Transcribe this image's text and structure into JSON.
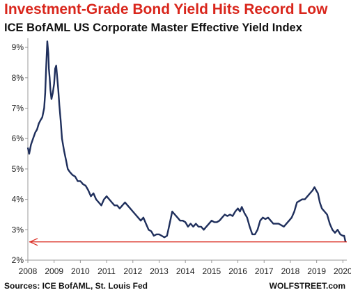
{
  "title": "Investment-Grade  Bond Yield Hits Record Low",
  "subtitle": "ICE BofAML US Corporate Master Effective Yield Index",
  "footer": {
    "source": "Sources: ICE BofAML, St. Louis Fed",
    "brand": "WOLFSTREET.com"
  },
  "colors": {
    "line": "#1f2f5c",
    "record_line": "#d9261c",
    "title": "#d9261c",
    "axis": "#999999"
  },
  "chart_data": {
    "type": "line",
    "title": "ICE BofAML US Corporate Master Effective Yield Index",
    "xlabel": "",
    "ylabel": "",
    "xlim": [
      2008.0,
      2020.15
    ],
    "ylim": [
      2,
      9.3
    ],
    "x_ticks": [
      2008,
      2009,
      2010,
      2011,
      2012,
      2013,
      2014,
      2015,
      2016,
      2017,
      2018,
      2019,
      2020
    ],
    "x_tick_labels": [
      "2008",
      "2009",
      "2010",
      "2011",
      "2012",
      "2013",
      "2014",
      "2015",
      "2016",
      "2017",
      "2018",
      "2019",
      "2020"
    ],
    "y_ticks": [
      2,
      3,
      4,
      5,
      6,
      7,
      8,
      9
    ],
    "y_tick_labels": [
      "2%",
      "3%",
      "4%",
      "5%",
      "6%",
      "7%",
      "8%",
      "9%"
    ],
    "grid": false,
    "record_low_line": 2.6,
    "series": [
      {
        "name": "",
        "x": [
          2008.0,
          2008.05,
          2008.12,
          2008.2,
          2008.28,
          2008.35,
          2008.42,
          2008.48,
          2008.55,
          2008.62,
          2008.66,
          2008.7,
          2008.74,
          2008.78,
          2008.8,
          2008.83,
          2008.86,
          2008.9,
          2008.95,
          2009.0,
          2009.04,
          2009.08,
          2009.12,
          2009.16,
          2009.2,
          2009.25,
          2009.3,
          2009.38,
          2009.45,
          2009.52,
          2009.6,
          2009.7,
          2009.8,
          2009.9,
          2010.0,
          2010.1,
          2010.2,
          2010.3,
          2010.4,
          2010.5,
          2010.6,
          2010.7,
          2010.8,
          2010.9,
          2011.0,
          2011.1,
          2011.2,
          2011.3,
          2011.4,
          2011.5,
          2011.6,
          2011.7,
          2011.8,
          2011.9,
          2012.0,
          2012.1,
          2012.2,
          2012.3,
          2012.4,
          2012.5,
          2012.6,
          2012.7,
          2012.8,
          2012.9,
          2013.0,
          2013.1,
          2013.2,
          2013.3,
          2013.4,
          2013.5,
          2013.6,
          2013.7,
          2013.8,
          2013.9,
          2014.0,
          2014.1,
          2014.2,
          2014.3,
          2014.4,
          2014.5,
          2014.6,
          2014.7,
          2014.8,
          2014.9,
          2015.0,
          2015.1,
          2015.2,
          2015.3,
          2015.4,
          2015.5,
          2015.6,
          2015.7,
          2015.8,
          2015.9,
          2016.0,
          2016.08,
          2016.15,
          2016.25,
          2016.35,
          2016.45,
          2016.55,
          2016.65,
          2016.75,
          2016.85,
          2016.95,
          2017.05,
          2017.15,
          2017.25,
          2017.35,
          2017.45,
          2017.55,
          2017.65,
          2017.75,
          2017.85,
          2017.95,
          2018.05,
          2018.15,
          2018.25,
          2018.35,
          2018.45,
          2018.55,
          2018.65,
          2018.75,
          2018.85,
          2018.92,
          2018.98,
          2019.05,
          2019.12,
          2019.2,
          2019.3,
          2019.4,
          2019.5,
          2019.6,
          2019.7,
          2019.8,
          2019.9,
          2020.0,
          2020.05,
          2020.1
        ],
        "values": [
          5.7,
          5.5,
          5.8,
          6.0,
          6.2,
          6.3,
          6.5,
          6.6,
          6.7,
          7.0,
          7.5,
          8.4,
          9.2,
          8.8,
          8.3,
          8.0,
          7.6,
          7.3,
          7.5,
          7.8,
          8.3,
          8.4,
          8.0,
          7.6,
          7.1,
          6.6,
          6.0,
          5.6,
          5.3,
          5.0,
          4.9,
          4.8,
          4.75,
          4.6,
          4.6,
          4.5,
          4.45,
          4.3,
          4.1,
          4.2,
          4.0,
          3.9,
          3.8,
          4.0,
          4.1,
          4.0,
          3.9,
          3.8,
          3.8,
          3.7,
          3.8,
          3.9,
          3.8,
          3.7,
          3.6,
          3.5,
          3.4,
          3.3,
          3.4,
          3.2,
          3.0,
          2.95,
          2.8,
          2.85,
          2.85,
          2.8,
          2.75,
          2.8,
          3.2,
          3.6,
          3.5,
          3.4,
          3.3,
          3.3,
          3.25,
          3.1,
          3.2,
          3.1,
          3.2,
          3.1,
          3.1,
          3.0,
          3.1,
          3.2,
          3.3,
          3.25,
          3.25,
          3.3,
          3.4,
          3.5,
          3.45,
          3.5,
          3.45,
          3.6,
          3.7,
          3.6,
          3.75,
          3.55,
          3.4,
          3.1,
          2.85,
          2.85,
          3.0,
          3.3,
          3.4,
          3.35,
          3.4,
          3.3,
          3.2,
          3.2,
          3.2,
          3.15,
          3.1,
          3.2,
          3.3,
          3.4,
          3.6,
          3.9,
          3.95,
          4.0,
          4.0,
          4.1,
          4.2,
          4.3,
          4.4,
          4.3,
          4.2,
          3.9,
          3.7,
          3.6,
          3.5,
          3.2,
          3.0,
          2.9,
          3.0,
          2.85,
          2.8,
          2.8,
          2.6
        ]
      }
    ]
  }
}
